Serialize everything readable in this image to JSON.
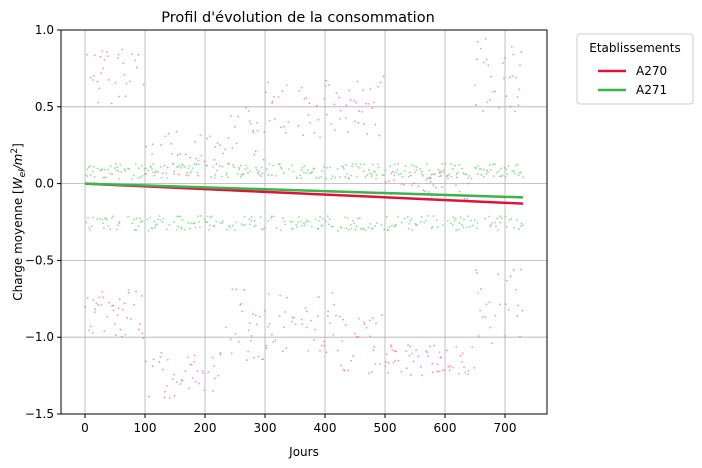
{
  "chart_data": {
    "type": "scatter",
    "title": "Profil d'évolution de la consommation",
    "xlabel": "Jours",
    "ylabel_text": "Charge moyenne [",
    "ylabel_var": "W",
    "ylabel_sub": "el",
    "ylabel_mid": "/m",
    "ylabel_sup": "2",
    "ylabel_end": "]",
    "xlim": [
      -40,
      770
    ],
    "ylim": [
      -1.5,
      1.0
    ],
    "xticks": [
      0,
      100,
      200,
      300,
      400,
      500,
      600,
      700
    ],
    "yticks": [
      -1.5,
      -1.0,
      -0.5,
      0.0,
      0.5,
      1.0
    ],
    "ytick_labels": [
      "−1.5",
      "−1.0",
      "−0.5",
      "0.0",
      "0.5",
      "1.0"
    ],
    "grid": true,
    "legend": {
      "title": "Etablissements",
      "placement": "outside-top-right"
    },
    "series": [
      {
        "name": "A270",
        "color": "#dc143c",
        "point_color": "#e8739a",
        "trend": {
          "x": [
            0,
            730
          ],
          "y": [
            0.0,
            -0.13
          ]
        },
        "scatter_bands": [
          {
            "x_range": [
              0,
              100
            ],
            "levels": [
              0.7,
              -0.85
            ],
            "spread": 0.18
          },
          {
            "x_range": [
              100,
              230
            ],
            "levels": [
              0.2,
              -1.25
            ],
            "spread": 0.15
          },
          {
            "x_range": [
              230,
              300
            ],
            "levels": [
              0.3,
              -0.9
            ],
            "spread": 0.25
          },
          {
            "x_range": [
              300,
              420
            ],
            "levels": [
              0.5,
              -0.9
            ],
            "spread": 0.2
          },
          {
            "x_range": [
              420,
              500
            ],
            "levels": [
              0.5,
              -1.05
            ],
            "spread": 0.2
          },
          {
            "x_range": [
              500,
              650
            ],
            "levels": [
              0.0,
              -1.15
            ],
            "spread": 0.1
          },
          {
            "x_range": [
              650,
              730
            ],
            "levels": [
              0.7,
              -0.8
            ],
            "spread": 0.25
          }
        ]
      },
      {
        "name": "A271",
        "color": "#3cb44b",
        "point_color": "#6fcf77",
        "trend": {
          "x": [
            0,
            730
          ],
          "y": [
            0.0,
            -0.09
          ]
        },
        "scatter_bands": [
          {
            "x_range": [
              0,
              730
            ],
            "levels": [
              0.08,
              -0.26
            ],
            "spread": 0.05
          }
        ]
      }
    ]
  }
}
